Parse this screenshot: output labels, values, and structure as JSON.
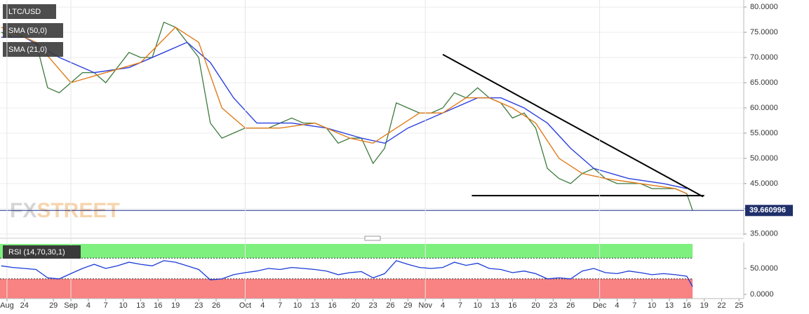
{
  "chart_data": [
    {
      "type": "line",
      "name": "LTC/USD",
      "xlim": [
        -4.2,
        123.8
      ],
      "ylim": [
        34.7,
        81.4
      ],
      "yticks": [
        {
          "value": 35,
          "label": "35.0000"
        },
        {
          "value": 40,
          "label": "40.0000"
        },
        {
          "value": 45,
          "label": "45.0000"
        },
        {
          "value": 50,
          "label": "50.0000"
        },
        {
          "value": 55,
          "label": "55.0000"
        },
        {
          "value": 60,
          "label": "60.0000"
        },
        {
          "value": 65,
          "label": "65.0000"
        },
        {
          "value": 70,
          "label": "70.0000"
        },
        {
          "value": 75,
          "label": "75.0000"
        },
        {
          "value": 80,
          "label": "80.0000"
        }
      ],
      "grid": true,
      "last_price": 39.660996,
      "watermark": [
        "FX",
        "STREET"
      ],
      "series": [
        {
          "name": "LTC/USD",
          "color": "#3d7a3d",
          "x": [
            -4,
            -2,
            0,
            2,
            4,
            6,
            8,
            10,
            12,
            14,
            16,
            18,
            20,
            22,
            24,
            26,
            28,
            30,
            32,
            34,
            36,
            38,
            40,
            42,
            44,
            46,
            48,
            50,
            52,
            54,
            56,
            58,
            60,
            62,
            64,
            66,
            68,
            70,
            72,
            74,
            76,
            78,
            80,
            82,
            84,
            86,
            88,
            90,
            92,
            94,
            96,
            98,
            100,
            102,
            104,
            106,
            108,
            110,
            112,
            114,
            115
          ],
          "values": [
            75,
            74,
            74,
            73,
            64,
            63,
            65,
            67,
            67,
            65,
            68,
            71,
            70,
            70,
            77,
            76,
            73,
            70,
            57,
            54,
            55,
            56,
            56,
            56,
            57,
            58,
            57,
            57,
            56,
            53,
            54,
            54,
            49,
            52,
            61,
            60,
            59,
            59,
            60,
            63,
            62,
            64,
            62,
            61,
            58,
            59,
            56,
            48,
            46,
            45,
            47,
            48,
            46,
            45,
            45,
            45,
            44,
            44,
            44,
            43,
            39.66
          ]
        },
        {
          "name": "SMA (50,0)",
          "color": "#2b3fe0",
          "x": [
            -4,
            0,
            6,
            12,
            18,
            24,
            28,
            32,
            36,
            40,
            46,
            52,
            58,
            62,
            66,
            70,
            74,
            78,
            82,
            86,
            90,
            94,
            98,
            104,
            110,
            114
          ],
          "values": [
            74,
            74,
            70,
            67,
            68,
            71,
            73,
            69,
            62,
            57,
            57,
            56,
            54,
            53,
            56,
            58,
            60,
            62,
            62,
            60,
            57,
            52,
            48,
            46,
            45,
            44
          ]
        },
        {
          "name": "SMA (21,0)",
          "color": "#e07b1a",
          "x": [
            -4,
            2,
            8,
            14,
            20,
            26,
            30,
            34,
            38,
            44,
            50,
            56,
            60,
            64,
            68,
            72,
            76,
            80,
            84,
            88,
            92,
            96,
            100,
            106,
            112,
            114
          ],
          "values": [
            76,
            73,
            65,
            67,
            69,
            76,
            73,
            60,
            56,
            56,
            57,
            54,
            53,
            56,
            59,
            59,
            62,
            62,
            60,
            57,
            50,
            47,
            46,
            45,
            44,
            43
          ]
        }
      ],
      "trendlines": [
        {
          "x": [
            72,
            116.8
          ],
          "y": [
            70.6,
            42.4
          ]
        },
        {
          "x": [
            77,
            117
          ],
          "y": [
            42.6,
            42.6
          ]
        }
      ]
    },
    {
      "type": "line",
      "name": "RSI (14,70,30,1)",
      "xlim": [
        -4.2,
        123.8
      ],
      "ylim": [
        -8,
        100
      ],
      "yticks": [
        {
          "value": 0,
          "label": "0.0000"
        },
        {
          "value": 50,
          "label": "50.0000"
        }
      ],
      "levels": [
        70,
        30
      ],
      "xticks": [
        {
          "value": -3,
          "label": "Aug"
        },
        {
          "value": 0,
          "label": "24"
        },
        {
          "value": 5,
          "label": "29"
        },
        {
          "value": 8,
          "label": "Sep"
        },
        {
          "value": 11,
          "label": "4"
        },
        {
          "value": 14,
          "label": "7"
        },
        {
          "value": 17,
          "label": "10"
        },
        {
          "value": 20,
          "label": "13"
        },
        {
          "value": 23,
          "label": "16"
        },
        {
          "value": 26,
          "label": "19"
        },
        {
          "value": 30,
          "label": "23"
        },
        {
          "value": 33,
          "label": "26"
        },
        {
          "value": 38,
          "label": "Oct"
        },
        {
          "value": 41,
          "label": "4"
        },
        {
          "value": 44,
          "label": "7"
        },
        {
          "value": 47,
          "label": "10"
        },
        {
          "value": 50,
          "label": "13"
        },
        {
          "value": 53,
          "label": "16"
        },
        {
          "value": 57,
          "label": "20"
        },
        {
          "value": 60,
          "label": "23"
        },
        {
          "value": 63,
          "label": "26"
        },
        {
          "value": 66,
          "label": "29"
        },
        {
          "value": 69,
          "label": "Nov"
        },
        {
          "value": 72,
          "label": "4"
        },
        {
          "value": 75,
          "label": "7"
        },
        {
          "value": 78,
          "label": "10"
        },
        {
          "value": 81,
          "label": "13"
        },
        {
          "value": 84,
          "label": "16"
        },
        {
          "value": 88,
          "label": "20"
        },
        {
          "value": 91,
          "label": "23"
        },
        {
          "value": 94,
          "label": "26"
        },
        {
          "value": 99,
          "label": "Dec"
        },
        {
          "value": 102,
          "label": "4"
        },
        {
          "value": 105,
          "label": "7"
        },
        {
          "value": 108,
          "label": "10"
        },
        {
          "value": 111,
          "label": "13"
        },
        {
          "value": 114,
          "label": "16"
        },
        {
          "value": 117,
          "label": "19"
        },
        {
          "value": 120,
          "label": "22"
        },
        {
          "value": 123,
          "label": "25"
        }
      ],
      "series": [
        {
          "name": "RSI",
          "color": "#1a3cd6",
          "x": [
            -4,
            -2,
            0,
            2,
            4,
            6,
            8,
            10,
            12,
            14,
            16,
            18,
            20,
            22,
            24,
            26,
            28,
            30,
            32,
            34,
            36,
            38,
            40,
            42,
            44,
            46,
            48,
            50,
            52,
            54,
            56,
            58,
            60,
            62,
            64,
            66,
            68,
            70,
            72,
            74,
            76,
            78,
            80,
            82,
            84,
            86,
            88,
            90,
            92,
            94,
            96,
            98,
            100,
            102,
            104,
            106,
            108,
            110,
            112,
            114,
            115
          ],
          "values": [
            55,
            52,
            50,
            48,
            32,
            30,
            40,
            50,
            58,
            50,
            55,
            62,
            58,
            55,
            65,
            62,
            55,
            48,
            28,
            30,
            38,
            42,
            45,
            50,
            48,
            52,
            50,
            48,
            45,
            38,
            42,
            44,
            32,
            40,
            65,
            58,
            52,
            50,
            52,
            62,
            56,
            60,
            50,
            48,
            42,
            45,
            40,
            30,
            32,
            30,
            45,
            50,
            42,
            40,
            45,
            42,
            38,
            40,
            38,
            35,
            15
          ]
        }
      ]
    }
  ]
}
